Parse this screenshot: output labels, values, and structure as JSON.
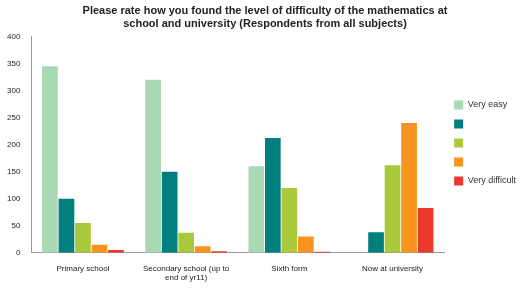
{
  "chart_data": {
    "type": "bar",
    "title": "Please rate how you found the level of difficulty of the mathematics at school and university (Respondents from all subjects)",
    "categories": [
      "Primary school",
      "Secondary school (up to end of yr11)",
      "Sixth form",
      "Now at university"
    ],
    "series": [
      {
        "name": "Very easy",
        "color": "#a8d8b4",
        "values": [
          345,
          320,
          160,
          0
        ]
      },
      {
        "name": null,
        "color": "#007f7f",
        "values": [
          100,
          150,
          212,
          38
        ]
      },
      {
        "name": null,
        "color": "#a9c93a",
        "values": [
          55,
          37,
          120,
          162
        ]
      },
      {
        "name": null,
        "color": "#f7931e",
        "values": [
          15,
          12,
          30,
          240
        ]
      },
      {
        "name": "Very difficult",
        "color": "#e8392b",
        "values": [
          5,
          3,
          2,
          83
        ]
      }
    ],
    "ylim": [
      0,
      400
    ],
    "yticks": [
      0,
      50,
      100,
      150,
      200,
      250,
      300,
      350,
      400
    ],
    "grid": false,
    "legend": "right"
  }
}
